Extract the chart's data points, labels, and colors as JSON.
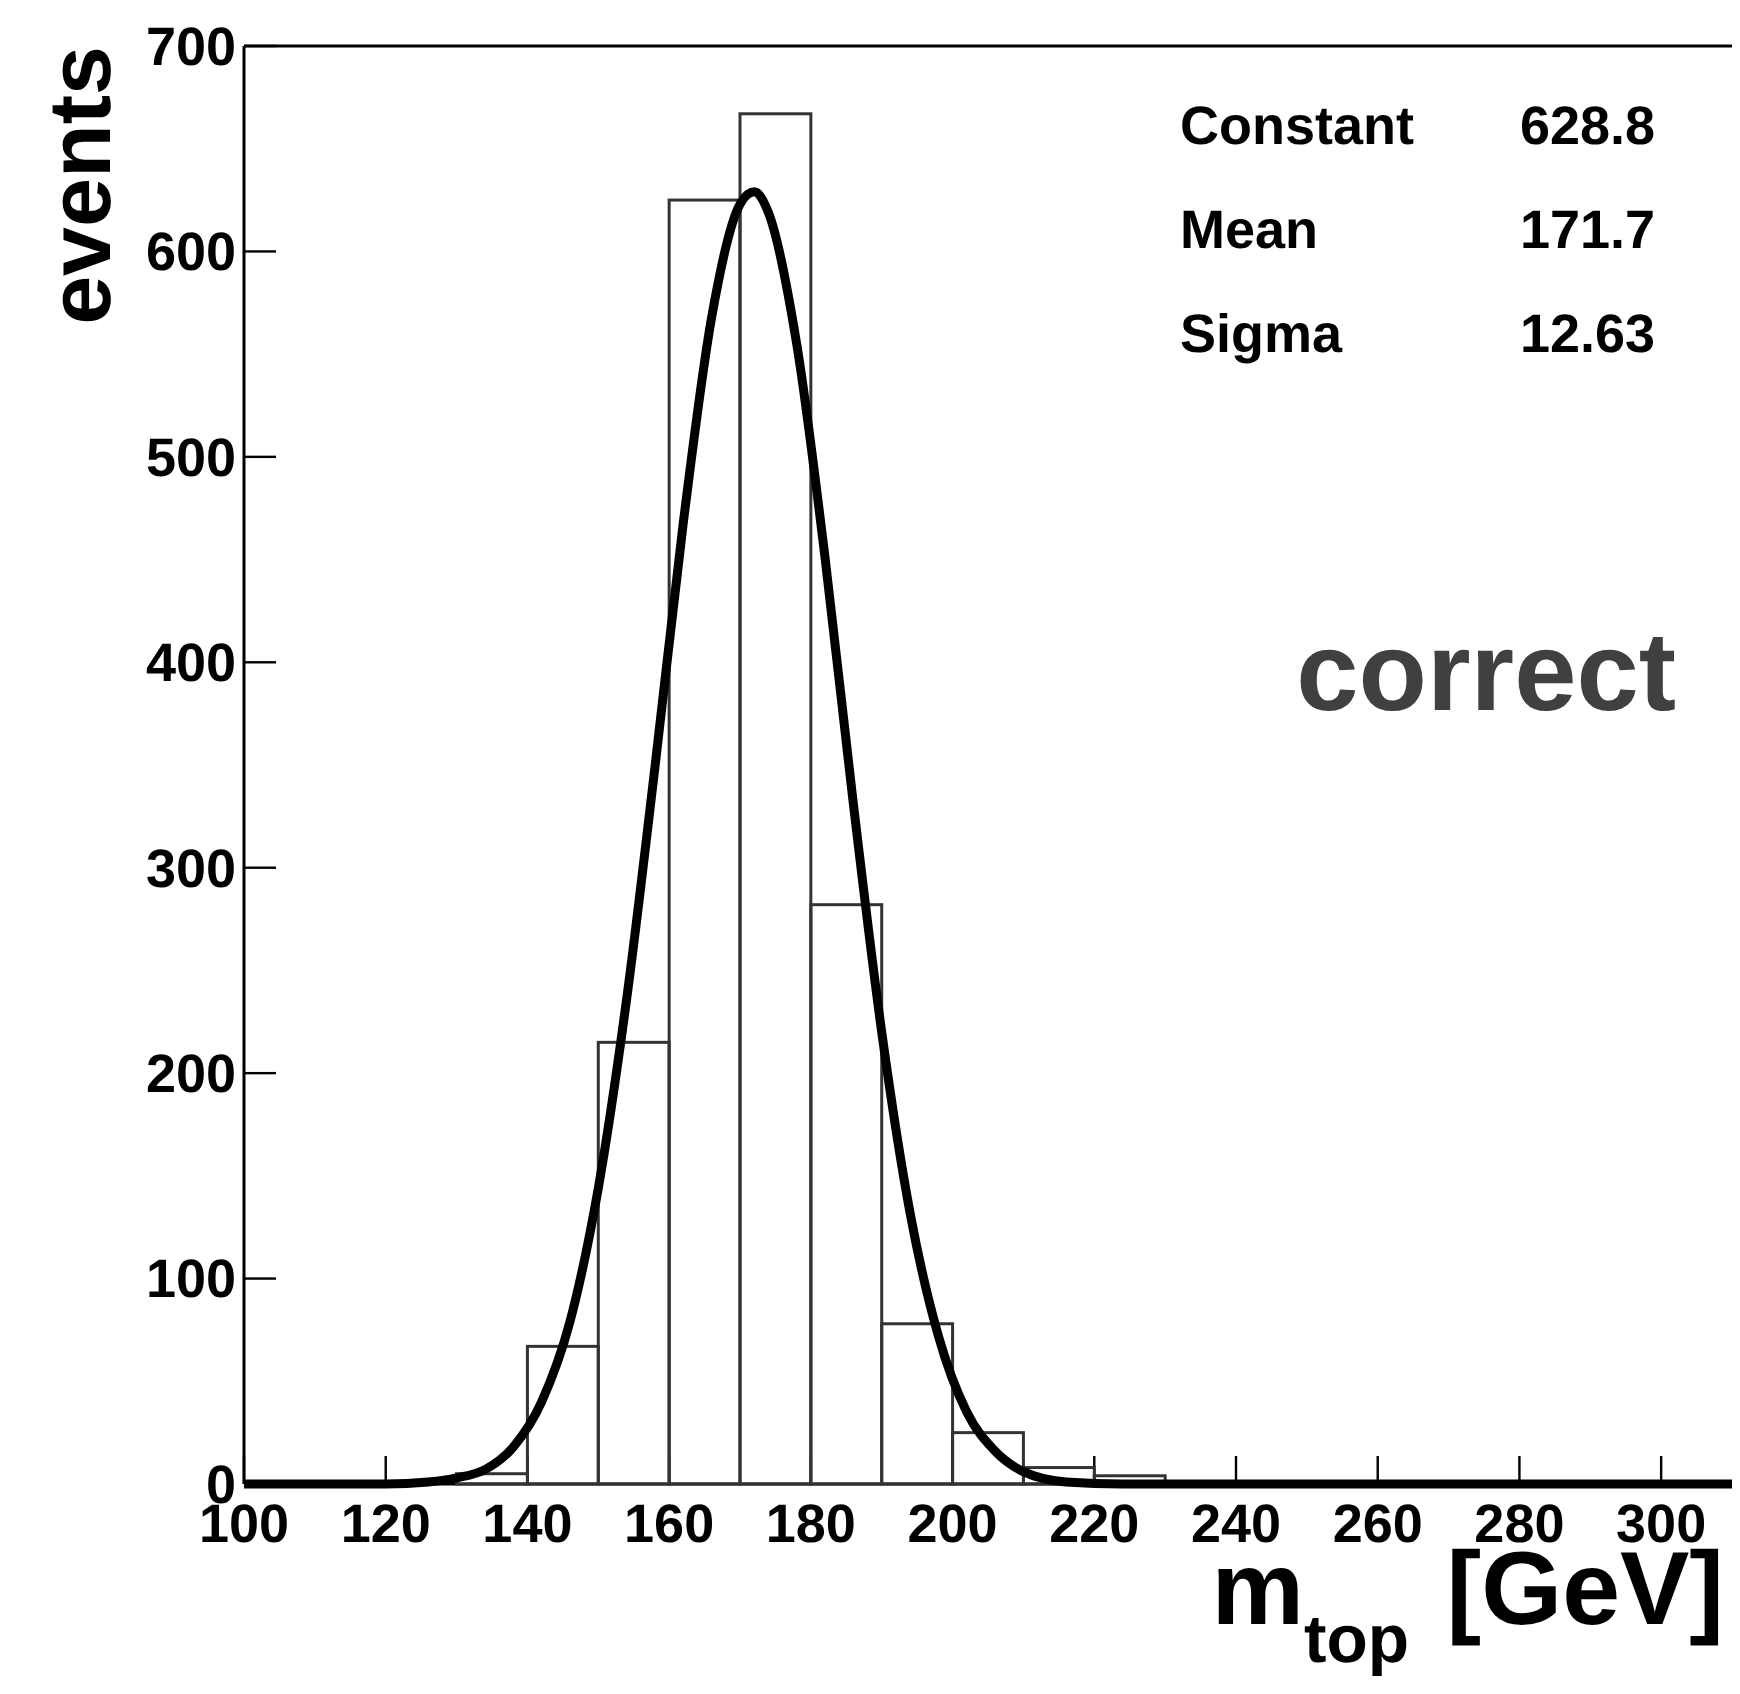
{
  "chart_data": {
    "type": "histogram",
    "xlabel": "m$_{top}$ [GeV]",
    "ylabel": "events",
    "annotations": [
      "Constant 628.8",
      "Mean 171.7",
      "Sigma 12.63",
      "correct"
    ],
    "bins": [
      100,
      110,
      120,
      130,
      140,
      150,
      160,
      170,
      180,
      190,
      200,
      210,
      220,
      230,
      240,
      250,
      260,
      270,
      280,
      290,
      300,
      310
    ],
    "series": [
      {
        "type": "histogram",
        "color": "#333333",
        "values": [
          0,
          0,
          0,
          5,
          67,
          215,
          625,
          667,
          282,
          78,
          25,
          8,
          4,
          1,
          0,
          0,
          0,
          0,
          0,
          0,
          0
        ]
      },
      {
        "type": "line",
        "color": "#000000",
        "x": [
          100,
          120,
          126,
          130,
          134,
          138,
          142,
          146,
          150,
          154,
          158,
          162,
          166,
          170,
          172,
          174,
          178,
          182,
          186,
          190,
          194,
          198,
          202,
          206,
          210,
          216,
          224,
          240,
          310
        ],
        "values": [
          0,
          0,
          1,
          3,
          7,
          18,
          40,
          79,
          144,
          236,
          349,
          468,
          568,
          623,
          629,
          619,
          555,
          451,
          331,
          220,
          132,
          72,
          35,
          16,
          6,
          1,
          0,
          0,
          0
        ]
      }
    ],
    "xlim": [
      100,
      310
    ],
    "ylim": [
      0,
      700
    ],
    "xticks": [
      100,
      120,
      140,
      160,
      180,
      200,
      220,
      240,
      260,
      280,
      300
    ],
    "yticks": [
      0,
      100,
      200,
      300,
      400,
      500,
      600,
      700
    ],
    "grid": false
  }
}
